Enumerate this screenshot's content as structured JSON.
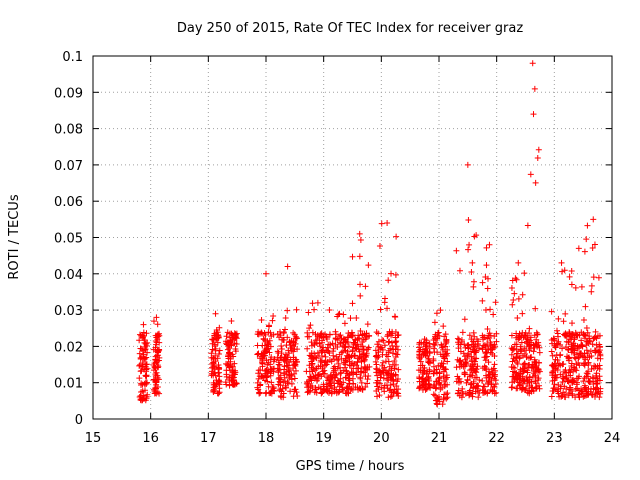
{
  "chart_data": {
    "type": "scatter",
    "title": "Day 250 of 2015, Rate Of TEC Index for receiver graz",
    "xlabel": "GPS time / hours",
    "ylabel": "ROTI / TECUs",
    "xlim": [
      15,
      24
    ],
    "ylim": [
      0,
      0.1
    ],
    "xticks": [
      "15",
      "16",
      "17",
      "18",
      "19",
      "20",
      "21",
      "22",
      "23",
      "24"
    ],
    "yticks": [
      "0",
      "0.01",
      "0.02",
      "0.03",
      "0.04",
      "0.05",
      "0.06",
      "0.07",
      "0.08",
      "0.09",
      "0.1"
    ],
    "grid": true,
    "marker": "+",
    "color": "#ff0000",
    "clusters": [
      {
        "x": [
          15.8,
          15.95
        ],
        "y": [
          0.005,
          0.026
        ]
      },
      {
        "x": [
          16.05,
          16.15
        ],
        "y": [
          0.007,
          0.028
        ]
      },
      {
        "x": [
          17.05,
          17.2
        ],
        "y": [
          0.007,
          0.029
        ]
      },
      {
        "x": [
          17.3,
          17.5
        ],
        "y": [
          0.009,
          0.027
        ]
      },
      {
        "x": [
          17.85,
          18.15
        ],
        "y": [
          0.007,
          0.04
        ]
      },
      {
        "x": [
          18.2,
          18.55
        ],
        "y": [
          0.006,
          0.042
        ]
      },
      {
        "x": [
          18.7,
          19.1
        ],
        "y": [
          0.007,
          0.032
        ]
      },
      {
        "x": [
          19.1,
          19.45
        ],
        "y": [
          0.007,
          0.029
        ]
      },
      {
        "x": [
          19.45,
          19.8
        ],
        "y": [
          0.008,
          0.051
        ]
      },
      {
        "x": [
          19.9,
          20.3
        ],
        "y": [
          0.006,
          0.054
        ]
      },
      {
        "x": [
          20.65,
          20.85
        ],
        "y": [
          0.008,
          0.022
        ]
      },
      {
        "x": [
          20.9,
          21.15
        ],
        "y": [
          0.004,
          0.03
        ]
      },
      {
        "x": [
          21.3,
          21.7
        ],
        "y": [
          0.006,
          0.07
        ]
      },
      {
        "x": [
          21.75,
          22.0
        ],
        "y": [
          0.007,
          0.048
        ]
      },
      {
        "x": [
          22.25,
          22.5
        ],
        "y": [
          0.008,
          0.043
        ]
      },
      {
        "x": [
          22.5,
          22.75
        ],
        "y": [
          0.007,
          0.098
        ]
      },
      {
        "x": [
          22.95,
          23.3
        ],
        "y": [
          0.006,
          0.043
        ]
      },
      {
        "x": [
          23.3,
          23.55
        ],
        "y": [
          0.006,
          0.047
        ]
      },
      {
        "x": [
          23.55,
          23.8
        ],
        "y": [
          0.006,
          0.055
        ]
      }
    ]
  }
}
